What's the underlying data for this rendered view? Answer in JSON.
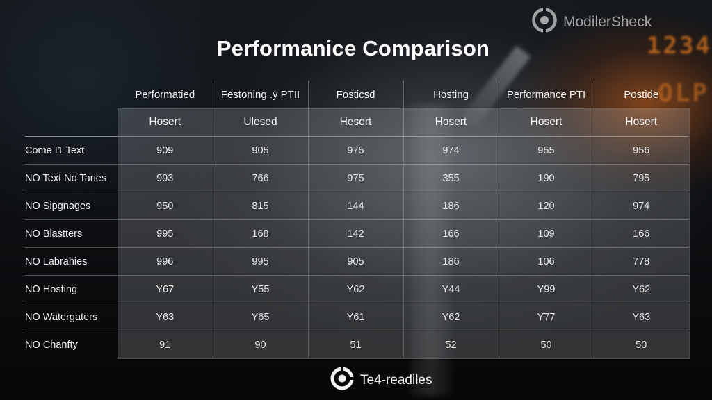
{
  "brand": {
    "name": "ModilerSheck",
    "icon": "target-logo-icon"
  },
  "background": {
    "digits_top": "1234",
    "digits_bottom": "OLP",
    "accent": "#d9761f"
  },
  "title": "Performanice Comparison",
  "table": {
    "columns": [
      {
        "header": "Performatied",
        "sub": "Hosert"
      },
      {
        "header": "Festoning .y PTII",
        "sub": "Ulesed"
      },
      {
        "header": "Fosticsd",
        "sub": "Hesort"
      },
      {
        "header": "Hosting",
        "sub": "Hosert"
      },
      {
        "header": "Performance PTI",
        "sub": "Hosert"
      },
      {
        "header": "Postide",
        "sub": "Hosert"
      }
    ],
    "rows": [
      {
        "label": "Come I1 Text",
        "values": [
          "909",
          "905",
          "975",
          "974",
          "955",
          "956"
        ]
      },
      {
        "label": "NO Text No Taries",
        "values": [
          "993",
          "766",
          "975",
          "355",
          "190",
          "795"
        ]
      },
      {
        "label": "NO Sipgnages",
        "values": [
          "950",
          "815",
          "144",
          "186",
          "120",
          "974"
        ]
      },
      {
        "label": "NO Blastters",
        "values": [
          "995",
          "168",
          "142",
          "166",
          "109",
          "166"
        ]
      },
      {
        "label": "NO Labrahies",
        "values": [
          "996",
          "995",
          "905",
          "186",
          "106",
          "778"
        ]
      },
      {
        "label": "NO Hosting",
        "values": [
          "Y67",
          "Y55",
          "Y62",
          "Y44",
          "Y99",
          "Y62"
        ]
      },
      {
        "label": "NO Watergaters",
        "values": [
          "Y63",
          "Y65",
          "Y61",
          "Y62",
          "Y77",
          "Y63"
        ]
      },
      {
        "label": "NO Chanfty",
        "values": [
          "91",
          "90",
          "51",
          "52",
          "50",
          "50"
        ]
      }
    ]
  },
  "footer": {
    "text": "Te4-readiles",
    "icon": "target-logo-icon"
  }
}
